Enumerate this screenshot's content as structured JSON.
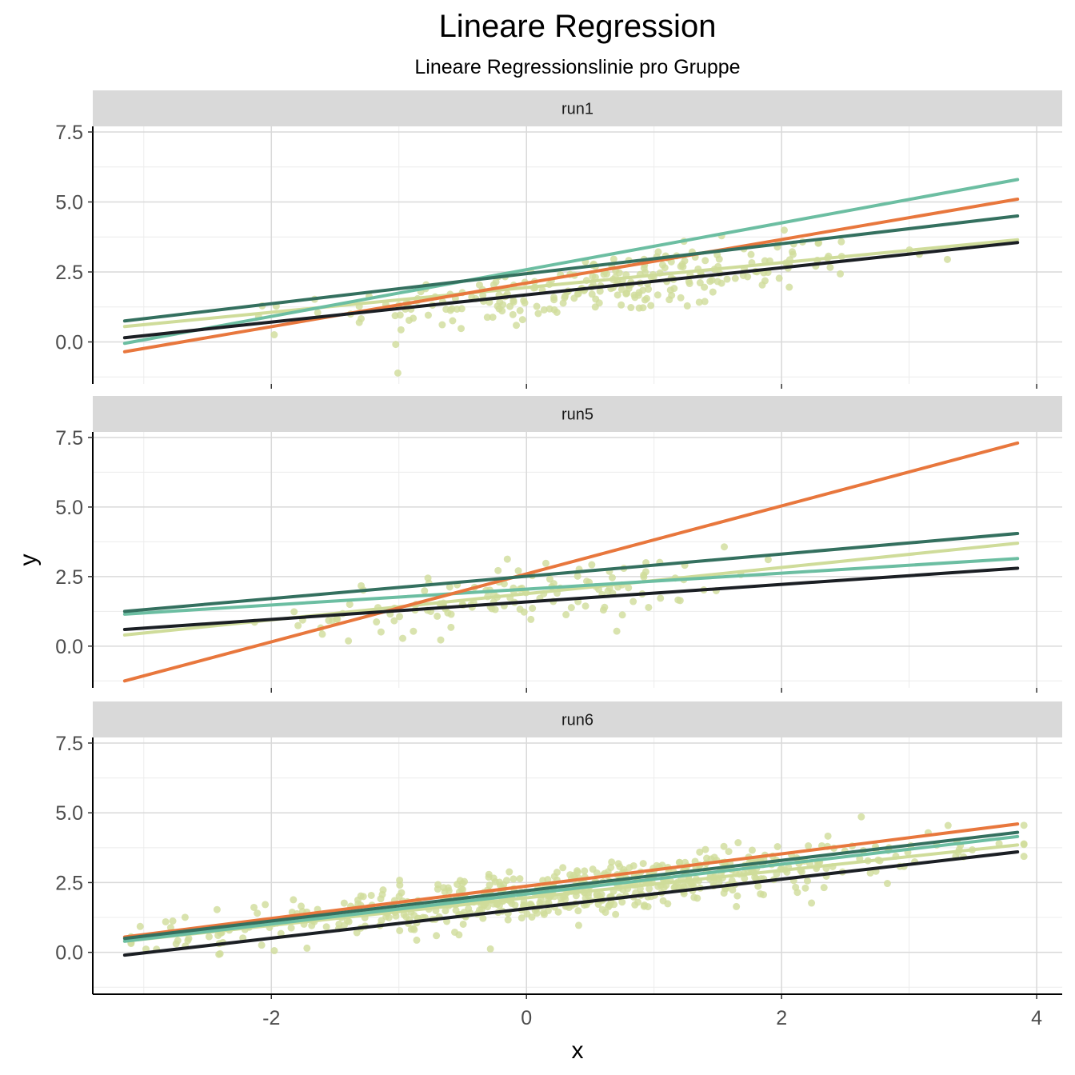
{
  "chart_data": {
    "type": "scatter",
    "title": "Lineare Regression",
    "subtitle": "Lineare Regressionslinie pro Gruppe",
    "xlabel": "x",
    "ylabel": "y",
    "xlim": [
      -3.4,
      4.2
    ],
    "ylim": [
      -1.5,
      7.7
    ],
    "x_ticks": [
      -2,
      0,
      2,
      4
    ],
    "x_tick_labels": [
      "-2",
      "0",
      "2",
      "4"
    ],
    "y_ticks": [
      0,
      2.5,
      5,
      7.5
    ],
    "y_tick_labels": [
      "0.0",
      "2.5",
      "5.0",
      "7.5"
    ],
    "grid": true,
    "legend": "none",
    "colors": {
      "black_series": "#1b1f24",
      "teal_series": "#6cbea2",
      "orange_series": "#e8773d",
      "darkgreen_series": "#34705f",
      "lightgreen_series": "#cfdc9a",
      "points": "#cfdc9a",
      "strip_bg": "#d9d9d9",
      "grid": "#d9d9d9"
    },
    "panels": [
      {
        "label": "run1",
        "lines": [
          {
            "color": "#cfdc9a",
            "x": [
              -3.15,
              3.85
            ],
            "y": [
              0.55,
              3.65
            ]
          },
          {
            "color": "#6cbea2",
            "x": [
              -3.15,
              3.85
            ],
            "y": [
              -0.05,
              5.8
            ]
          },
          {
            "color": "#e8773d",
            "x": [
              -3.15,
              3.85
            ],
            "y": [
              -0.35,
              5.1
            ]
          },
          {
            "color": "#34705f",
            "x": [
              -3.15,
              3.85
            ],
            "y": [
              0.75,
              4.5
            ]
          },
          {
            "color": "#1b1f24",
            "x": [
              -3.15,
              3.85
            ],
            "y": [
              0.15,
              3.55
            ]
          }
        ],
        "points": {
          "n": 260,
          "xmin": -2.1,
          "xmax": 3.3,
          "intercept": 1.7,
          "slope": 0.5,
          "noise": 0.55
        }
      },
      {
        "label": "run5",
        "lines": [
          {
            "color": "#cfdc9a",
            "x": [
              -3.15,
              3.85
            ],
            "y": [
              0.4,
              3.7
            ]
          },
          {
            "color": "#6cbea2",
            "x": [
              -3.15,
              3.85
            ],
            "y": [
              1.15,
              3.15
            ]
          },
          {
            "color": "#e8773d",
            "x": [
              -3.15,
              3.85
            ],
            "y": [
              -1.25,
              7.3
            ]
          },
          {
            "color": "#34705f",
            "x": [
              -3.15,
              3.85
            ],
            "y": [
              1.25,
              4.05
            ]
          },
          {
            "color": "#1b1f24",
            "x": [
              -3.15,
              3.85
            ],
            "y": [
              0.6,
              2.8
            ]
          }
        ],
        "points": {
          "n": 130,
          "xmin": -2.2,
          "xmax": 2.1,
          "intercept": 1.8,
          "slope": 0.45,
          "noise": 0.55
        }
      },
      {
        "label": "run6",
        "lines": [
          {
            "color": "#cfdc9a",
            "x": [
              -3.15,
              3.85
            ],
            "y": [
              0.4,
              3.85
            ]
          },
          {
            "color": "#6cbea2",
            "x": [
              -3.15,
              3.85
            ],
            "y": [
              0.4,
              4.15
            ]
          },
          {
            "color": "#e8773d",
            "x": [
              -3.15,
              3.85
            ],
            "y": [
              0.55,
              4.6
            ]
          },
          {
            "color": "#34705f",
            "x": [
              -3.15,
              3.85
            ],
            "y": [
              0.5,
              4.3
            ]
          },
          {
            "color": "#1b1f24",
            "x": [
              -3.15,
              3.85
            ],
            "y": [
              -0.1,
              3.6
            ]
          }
        ],
        "points": {
          "n": 620,
          "xmin": -3.1,
          "xmax": 3.9,
          "intercept": 2.0,
          "slope": 0.5,
          "noise": 0.45
        }
      }
    ]
  }
}
